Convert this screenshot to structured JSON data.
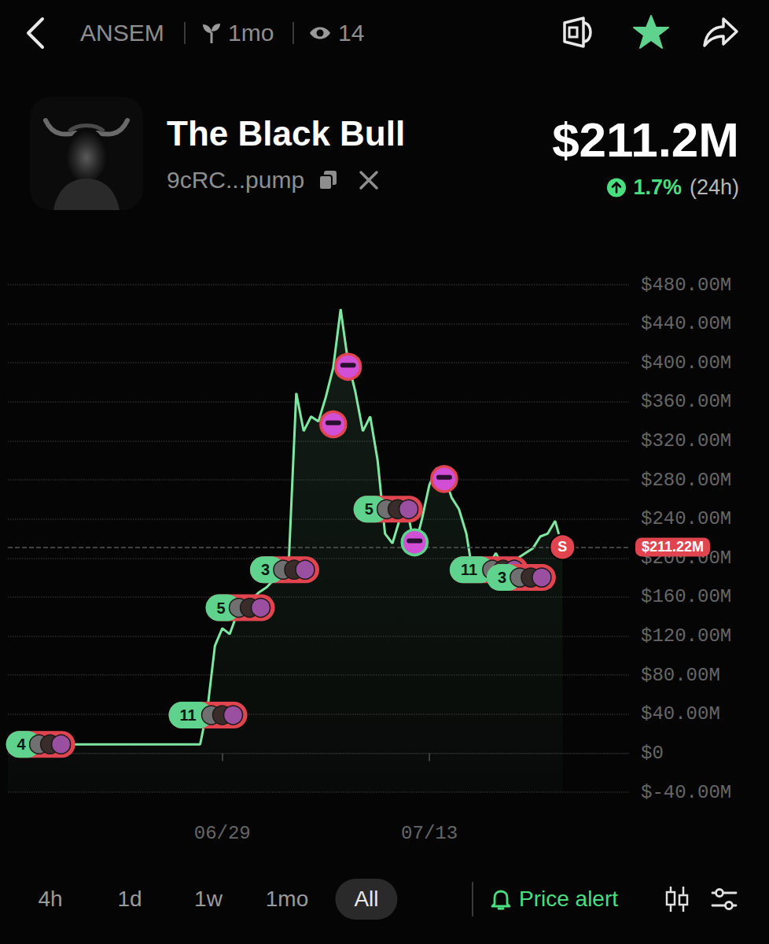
{
  "header": {
    "ticker": "ANSEM",
    "age": "1mo",
    "views": "14",
    "name": "The Black Bull",
    "address": "9cRC...pump",
    "market_cap": "$211.2M",
    "change": "1.7%",
    "change_period": "(24h)"
  },
  "chart_data": {
    "type": "line",
    "color": "#7ee8a2",
    "grid": true,
    "categories": [
      null,
      null,
      null,
      null,
      null,
      null,
      null,
      null,
      null,
      null,
      null,
      null,
      null,
      null,
      null,
      null,
      null,
      null,
      null,
      null,
      null,
      null,
      null,
      null,
      null,
      null,
      null,
      null,
      null,
      "06/29",
      null,
      null,
      null,
      null,
      null,
      null,
      null,
      null,
      null,
      null,
      null,
      null,
      null,
      null,
      null,
      null,
      null,
      null,
      null,
      null,
      null,
      null,
      null,
      null,
      null,
      null,
      null,
      "07/13",
      null,
      null,
      null,
      null,
      null,
      null,
      null,
      null,
      null,
      null,
      null,
      null,
      null,
      null,
      null,
      null,
      null,
      null,
      null,
      null,
      null,
      null,
      null,
      null,
      null,
      null,
      null
    ],
    "values": [
      9,
      9,
      9,
      9,
      9,
      9,
      9,
      9,
      9,
      9,
      9,
      9,
      9,
      9,
      9,
      9,
      9,
      9,
      9,
      9,
      9,
      9,
      9,
      9,
      9,
      9,
      9,
      46,
      110,
      128,
      122,
      143,
      150,
      158,
      165,
      170,
      178,
      185,
      198,
      369,
      330,
      345,
      340,
      365,
      395,
      455,
      401,
      370,
      330,
      345,
      300,
      225,
      215,
      240,
      250,
      210,
      240,
      275,
      292,
      285,
      262,
      250,
      225,
      178,
      200,
      192,
      205,
      190,
      188,
      200,
      205,
      210,
      222,
      225,
      238,
      211.22,
      null,
      null,
      null,
      null,
      null,
      null,
      null,
      null,
      null
    ],
    "ylim": [
      -40,
      480
    ],
    "yticks": [
      {
        "value": -40,
        "label": "$-40.00M"
      },
      {
        "value": 0,
        "label": "$0"
      },
      {
        "value": 40,
        "label": "$40.00M"
      },
      {
        "value": 80,
        "label": "$80.00M"
      },
      {
        "value": 120,
        "label": "$120.00M"
      },
      {
        "value": 160,
        "label": "$160.00M"
      },
      {
        "value": 200,
        "label": "$200.00M"
      },
      {
        "value": 240,
        "label": "$240.00M"
      },
      {
        "value": 280,
        "label": "$280.00M"
      },
      {
        "value": 320,
        "label": "$320.00M"
      },
      {
        "value": 360,
        "label": "$360.00M"
      },
      {
        "value": 400,
        "label": "$400.00M"
      },
      {
        "value": 440,
        "label": "$440.00M"
      },
      {
        "value": 480,
        "label": "$480.00M"
      }
    ],
    "current": {
      "value": 211.22,
      "label": "$211.22M",
      "color": "#e0454f"
    },
    "markers": [
      {
        "type": "group",
        "index": 4,
        "value": 9,
        "label": "4"
      },
      {
        "type": "group",
        "index": 26,
        "value": 39,
        "label": "11"
      },
      {
        "type": "group",
        "index": 31,
        "value": 149,
        "label": "5"
      },
      {
        "type": "group",
        "index": 37,
        "value": 188,
        "label": "3"
      },
      {
        "type": "group",
        "index": 51,
        "value": 250,
        "label": "5"
      },
      {
        "type": "group",
        "index": 64,
        "value": 188,
        "label": "11"
      },
      {
        "type": "group",
        "index": 69,
        "value": 180,
        "label": "3"
      },
      {
        "type": "avatar",
        "index": 44,
        "value": 337,
        "color": "#e0454f"
      },
      {
        "type": "avatar",
        "index": 46,
        "value": 396,
        "color": "#e0454f"
      },
      {
        "type": "avatar",
        "index": 55,
        "value": 216,
        "color": "#5fd38d"
      },
      {
        "type": "avatar",
        "index": 59,
        "value": 281,
        "color": "#e0454f"
      },
      {
        "type": "trade",
        "index": 75,
        "value": 211.22,
        "label": "S",
        "color": "#e0454f"
      }
    ]
  },
  "footer": {
    "ranges": [
      "4h",
      "1d",
      "1w",
      "1mo",
      "All"
    ],
    "selected": "All",
    "alert": "Price alert"
  }
}
